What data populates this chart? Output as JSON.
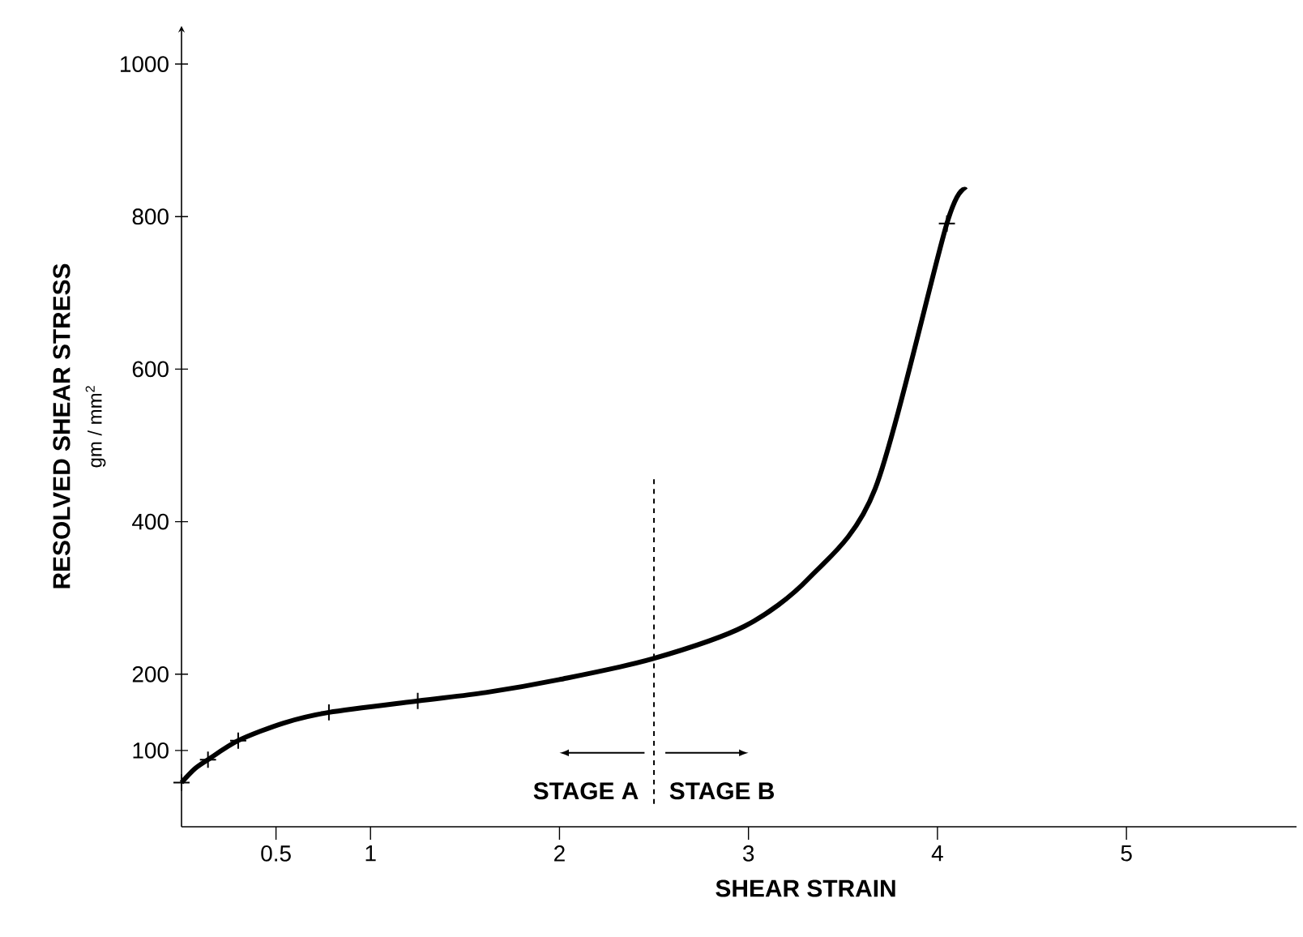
{
  "chart_data": {
    "type": "line",
    "xlabel": "SHEAR STRAIN",
    "ylabel": "RESOLVED SHEAR STRESS",
    "xlim": [
      0,
      5.9
    ],
    "ylim": [
      0,
      1050
    ],
    "xticks": [
      0.5,
      1,
      2,
      3,
      4,
      5
    ],
    "yticks": [
      100,
      200,
      400,
      600,
      800,
      1000
    ],
    "grid": false,
    "series": [
      {
        "color": "#000000",
        "x": [
          0,
          0.07,
          0.14,
          0.3,
          0.54,
          0.78,
          1.25,
          1.61,
          2,
          2.49,
          2.98,
          3.32,
          3.67,
          4.05,
          4.15
        ],
        "values": [
          58,
          76,
          88,
          113,
          136,
          150,
          165,
          176,
          193,
          220,
          263,
          326,
          443,
          791,
          835
        ]
      },
      {
        "type": "scatter",
        "color": "#000000",
        "marker": "cross",
        "x": [
          0,
          0.14,
          0.3,
          0.78,
          1.25,
          4.05
        ],
        "values": [
          58,
          88,
          113,
          150,
          165,
          791
        ]
      }
    ],
    "ref_lines": [
      {
        "axis": "x",
        "value": 2.5,
        "color": "#000000",
        "line_style": "dashed"
      }
    ],
    "annotations": [
      "gm / mm$^{2}$",
      "STAGE A",
      "STAGE B"
    ]
  }
}
